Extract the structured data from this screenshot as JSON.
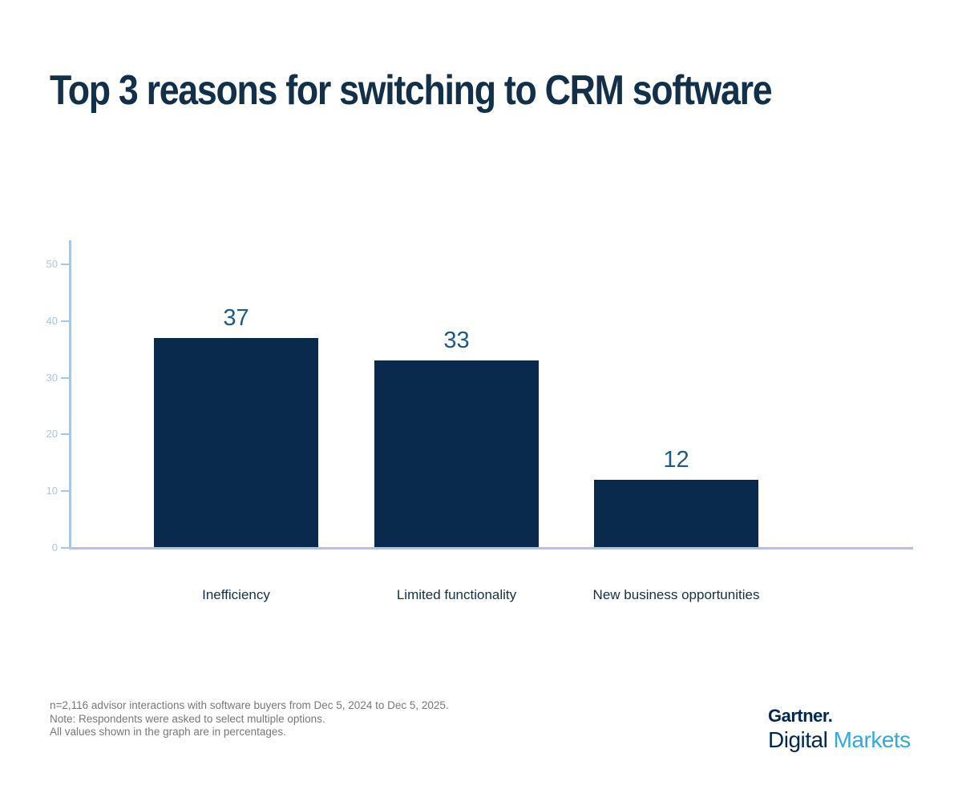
{
  "title": {
    "text": "Top 3 reasons for switching to CRM software",
    "color": "#12304a"
  },
  "chart_data": {
    "type": "bar",
    "categories": [
      "Inefficiency",
      "Limited functionality",
      "New business opportunities"
    ],
    "values": [
      37,
      33,
      12
    ],
    "title": "Top 3 reasons for switching to CRM software",
    "xlabel": "",
    "ylabel": "",
    "ylim": [
      0,
      54
    ],
    "yticks": [
      0,
      10,
      20,
      30,
      40,
      50
    ],
    "grid": false,
    "legend": "none",
    "unit": "percent",
    "bar_color": "#0a2a4d",
    "value_label_color": "#1e5a87",
    "axis_color": "#a9c6e8",
    "category_label_color": "#12304a"
  },
  "footnotes": {
    "line1": "n=2,116 advisor interactions with software buyers from Dec 5, 2024 to Dec 5, 2025.",
    "line2": "Note: Respondents were asked to select multiple options.",
    "line3": "All values shown in the graph are in percentages.",
    "color": "#77787b"
  },
  "logo": {
    "brand": "Gartner",
    "brand_mark": ".",
    "line2_dark": "Digital",
    "line2_light": "Markets",
    "navy": "#002856",
    "light_blue": "#30a9e0"
  }
}
